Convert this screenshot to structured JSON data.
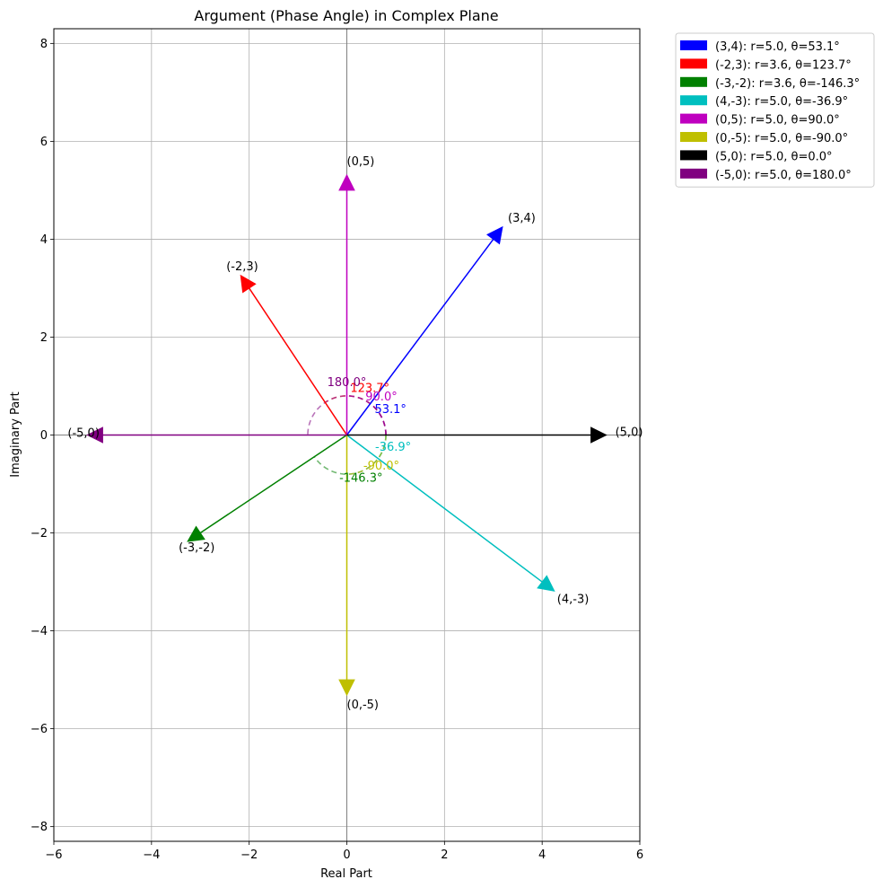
{
  "chart_data": {
    "type": "vector",
    "title": "Argument (Phase Angle) in Complex Plane",
    "xlabel": "Real Part",
    "ylabel": "Imaginary Part",
    "xlim": [
      -6,
      6
    ],
    "ylim": [
      -8.3,
      8.3
    ],
    "xticks": [
      -6,
      -4,
      -2,
      0,
      2,
      4,
      6
    ],
    "xtick_labels": [
      "−6",
      "−4",
      "−2",
      "0",
      "2",
      "4",
      "6"
    ],
    "yticks": [
      -8,
      -6,
      -4,
      -2,
      0,
      2,
      4,
      6,
      8
    ],
    "ytick_labels": [
      "−8",
      "−6",
      "−4",
      "−2",
      "0",
      "2",
      "4",
      "6",
      "8"
    ],
    "grid": true,
    "legend_position": "outside-top-right",
    "arc_radius": 0.8,
    "series": [
      {
        "name": "(3,4): r=5.0, θ=53.1°",
        "point_label": "(3,4)",
        "re": 3,
        "im": 4,
        "r": 5.0,
        "theta_deg": 53.1,
        "angle_label": "53.1°",
        "color": "#0000ff"
      },
      {
        "name": "(-2,3): r=3.6, θ=123.7°",
        "point_label": "(-2,3)",
        "re": -2,
        "im": 3,
        "r": 3.6,
        "theta_deg": 123.7,
        "angle_label": "123.7°",
        "color": "#ff0000"
      },
      {
        "name": "(-3,-2): r=3.6, θ=-146.3°",
        "point_label": "(-3,-2)",
        "re": -3,
        "im": -2,
        "r": 3.6,
        "theta_deg": -146.3,
        "angle_label": "-146.3°",
        "color": "#008000"
      },
      {
        "name": "(4,-3): r=5.0, θ=-36.9°",
        "point_label": "(4,-3)",
        "re": 4,
        "im": -3,
        "r": 5.0,
        "theta_deg": -36.9,
        "angle_label": "-36.9°",
        "color": "#00bfbf"
      },
      {
        "name": "(0,5): r=5.0, θ=90.0°",
        "point_label": "(0,5)",
        "re": 0,
        "im": 5,
        "r": 5.0,
        "theta_deg": 90.0,
        "angle_label": "90.0°",
        "color": "#bf00bf"
      },
      {
        "name": "(0,-5): r=5.0, θ=-90.0°",
        "point_label": "(0,-5)",
        "re": 0,
        "im": -5,
        "r": 5.0,
        "theta_deg": -90.0,
        "angle_label": "-90.0°",
        "color": "#bfbf00"
      },
      {
        "name": "(5,0): r=5.0, θ=0.0°",
        "point_label": "(5,0)",
        "re": 5,
        "im": 0,
        "r": 5.0,
        "theta_deg": 0.0,
        "angle_label": "",
        "color": "#000000"
      },
      {
        "name": "(-5,0): r=5.0, θ=180.0°",
        "point_label": "(-5,0)",
        "re": -5,
        "im": 0,
        "r": 5.0,
        "theta_deg": 180.0,
        "angle_label": "180.0°",
        "color": "#800080"
      }
    ]
  }
}
